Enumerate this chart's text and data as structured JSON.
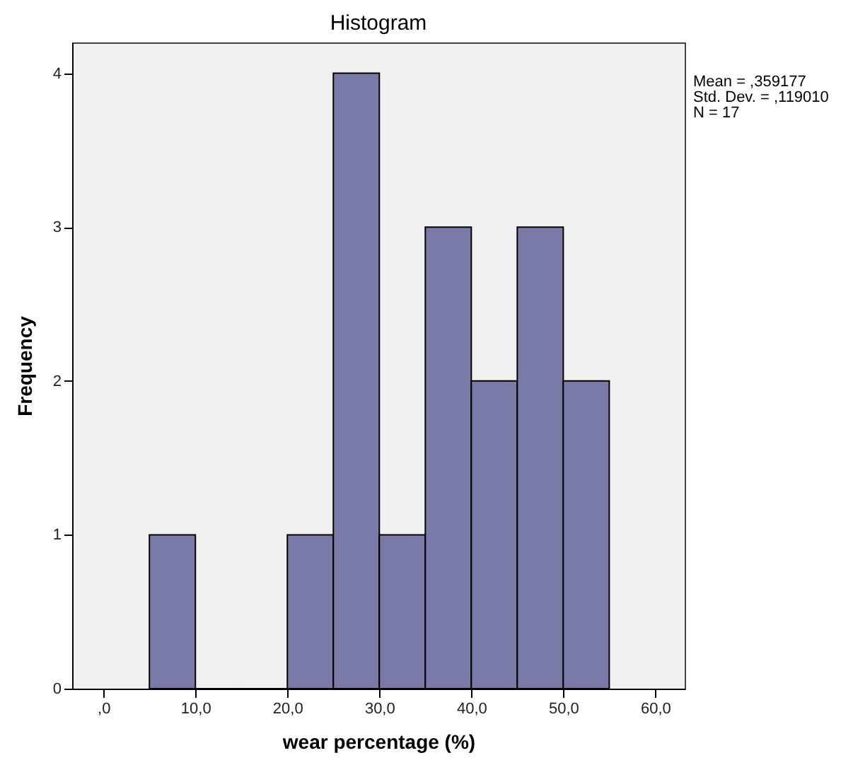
{
  "chart_data": {
    "type": "histogram",
    "title": "Histogram",
    "xlabel": "wear percentage (%)",
    "ylabel": "Frequency",
    "bins": [
      5,
      10,
      15,
      20,
      25,
      30,
      35,
      40,
      45,
      50,
      55
    ],
    "values": [
      1,
      0,
      0,
      1,
      4,
      1,
      3,
      2,
      3,
      2
    ],
    "color": "#7a7aa8",
    "xlim": [
      -3.4,
      63.2
    ],
    "xticks": [
      {
        "value": 0,
        "label": ",0"
      },
      {
        "value": 10,
        "label": "10,0"
      },
      {
        "value": 20,
        "label": "20,0"
      },
      {
        "value": 30,
        "label": "30,0"
      },
      {
        "value": 40,
        "label": "40,0"
      },
      {
        "value": 50,
        "label": "50,0"
      },
      {
        "value": 60,
        "label": "60,0"
      }
    ],
    "ylim": [
      0,
      4.2
    ],
    "yticks": [
      0,
      1,
      2,
      3,
      4
    ],
    "annotations": [
      "Mean = ,359177",
      "Std. Dev. = ,119010",
      "N = 17"
    ]
  }
}
